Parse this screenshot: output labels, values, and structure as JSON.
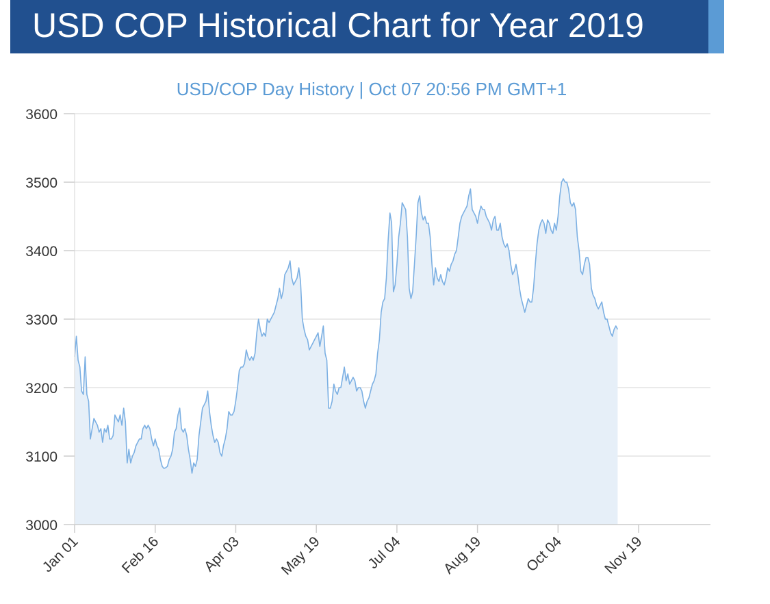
{
  "header": {
    "title": "USD COP Historical Chart for Year 2019"
  },
  "colors": {
    "header_bg": "#21508f",
    "header_accent": "#5b9bd5",
    "line": "#7cb0e3",
    "area_fill": "#e6eff8",
    "title_text": "#5b9bd5"
  },
  "chart_data": {
    "type": "area",
    "title": "USD/COP  Day History | Oct 07 20:56 PM GMT+1",
    "xlabel": "",
    "ylabel": "",
    "ylim": [
      3000,
      3600
    ],
    "yticks": [
      3000,
      3100,
      3200,
      3300,
      3400,
      3500,
      3600
    ],
    "xlim": [
      0,
      363
    ],
    "xticks": [
      {
        "label": "Jan 01",
        "day": 0
      },
      {
        "label": "Feb 16",
        "day": 46
      },
      {
        "label": "Apr 03",
        "day": 92
      },
      {
        "label": "May 19",
        "day": 138
      },
      {
        "label": "Jul 04",
        "day": 184
      },
      {
        "label": "Aug 19",
        "day": 230
      },
      {
        "label": "Oct 04",
        "day": 276
      },
      {
        "label": "Nov 19",
        "day": 322
      }
    ],
    "grid": true,
    "series": [
      {
        "points": [
          [
            0,
            3245
          ],
          [
            1,
            3275
          ],
          [
            2,
            3240
          ],
          [
            3,
            3230
          ],
          [
            4,
            3195
          ],
          [
            5,
            3190
          ],
          [
            6,
            3245
          ],
          [
            7,
            3190
          ],
          [
            8,
            3180
          ],
          [
            9,
            3125
          ],
          [
            10,
            3140
          ],
          [
            11,
            3155
          ],
          [
            12,
            3150
          ],
          [
            13,
            3145
          ],
          [
            14,
            3135
          ],
          [
            15,
            3140
          ],
          [
            16,
            3120
          ],
          [
            17,
            3140
          ],
          [
            18,
            3135
          ],
          [
            19,
            3145
          ],
          [
            20,
            3125
          ],
          [
            21,
            3125
          ],
          [
            22,
            3130
          ],
          [
            23,
            3160
          ],
          [
            24,
            3155
          ],
          [
            25,
            3150
          ],
          [
            26,
            3160
          ],
          [
            27,
            3145
          ],
          [
            28,
            3170
          ],
          [
            29,
            3150
          ],
          [
            30,
            3090
          ],
          [
            31,
            3110
          ],
          [
            32,
            3090
          ],
          [
            33,
            3100
          ],
          [
            34,
            3105
          ],
          [
            35,
            3115
          ],
          [
            36,
            3120
          ],
          [
            37,
            3125
          ],
          [
            38,
            3125
          ],
          [
            39,
            3140
          ],
          [
            40,
            3145
          ],
          [
            41,
            3140
          ],
          [
            42,
            3145
          ],
          [
            43,
            3140
          ],
          [
            44,
            3125
          ],
          [
            45,
            3115
          ],
          [
            46,
            3125
          ],
          [
            47,
            3115
          ],
          [
            48,
            3110
          ],
          [
            49,
            3095
          ],
          [
            50,
            3085
          ],
          [
            51,
            3082
          ],
          [
            52,
            3083
          ],
          [
            53,
            3085
          ],
          [
            54,
            3095
          ],
          [
            55,
            3100
          ],
          [
            56,
            3110
          ],
          [
            57,
            3135
          ],
          [
            58,
            3140
          ],
          [
            59,
            3160
          ],
          [
            60,
            3170
          ],
          [
            61,
            3140
          ],
          [
            62,
            3135
          ],
          [
            63,
            3140
          ],
          [
            64,
            3130
          ],
          [
            65,
            3110
          ],
          [
            66,
            3095
          ],
          [
            67,
            3075
          ],
          [
            68,
            3090
          ],
          [
            69,
            3085
          ],
          [
            70,
            3095
          ],
          [
            71,
            3130
          ],
          [
            72,
            3150
          ],
          [
            73,
            3170
          ],
          [
            74,
            3175
          ],
          [
            75,
            3180
          ],
          [
            76,
            3195
          ],
          [
            77,
            3165
          ],
          [
            78,
            3145
          ],
          [
            79,
            3130
          ],
          [
            80,
            3120
          ],
          [
            81,
            3125
          ],
          [
            82,
            3120
          ],
          [
            83,
            3105
          ],
          [
            84,
            3100
          ],
          [
            85,
            3115
          ],
          [
            86,
            3125
          ],
          [
            87,
            3140
          ],
          [
            88,
            3165
          ],
          [
            89,
            3160
          ],
          [
            90,
            3160
          ],
          [
            91,
            3165
          ],
          [
            92,
            3180
          ],
          [
            93,
            3200
          ],
          [
            94,
            3225
          ],
          [
            95,
            3230
          ],
          [
            96,
            3230
          ],
          [
            97,
            3235
          ],
          [
            98,
            3255
          ],
          [
            99,
            3245
          ],
          [
            100,
            3240
          ],
          [
            101,
            3245
          ],
          [
            102,
            3240
          ],
          [
            103,
            3250
          ],
          [
            104,
            3280
          ],
          [
            105,
            3300
          ],
          [
            106,
            3285
          ],
          [
            107,
            3275
          ],
          [
            108,
            3280
          ],
          [
            109,
            3275
          ],
          [
            110,
            3300
          ],
          [
            111,
            3295
          ],
          [
            112,
            3300
          ],
          [
            113,
            3305
          ],
          [
            114,
            3310
          ],
          [
            115,
            3320
          ],
          [
            116,
            3330
          ],
          [
            117,
            3345
          ],
          [
            118,
            3330
          ],
          [
            119,
            3340
          ],
          [
            120,
            3365
          ],
          [
            121,
            3370
          ],
          [
            122,
            3375
          ],
          [
            123,
            3385
          ],
          [
            124,
            3360
          ],
          [
            125,
            3350
          ],
          [
            126,
            3355
          ],
          [
            127,
            3360
          ],
          [
            128,
            3375
          ],
          [
            129,
            3355
          ],
          [
            130,
            3300
          ],
          [
            131,
            3285
          ],
          [
            132,
            3275
          ],
          [
            133,
            3270
          ],
          [
            134,
            3255
          ],
          [
            135,
            3260
          ],
          [
            136,
            3265
          ],
          [
            137,
            3270
          ],
          [
            138,
            3275
          ],
          [
            139,
            3280
          ],
          [
            140,
            3260
          ],
          [
            141,
            3275
          ],
          [
            142,
            3290
          ],
          [
            143,
            3250
          ],
          [
            144,
            3240
          ],
          [
            145,
            3170
          ],
          [
            146,
            3170
          ],
          [
            147,
            3180
          ],
          [
            148,
            3205
          ],
          [
            149,
            3195
          ],
          [
            150,
            3190
          ],
          [
            151,
            3200
          ],
          [
            152,
            3200
          ],
          [
            153,
            3215
          ],
          [
            154,
            3230
          ],
          [
            155,
            3210
          ],
          [
            156,
            3220
          ],
          [
            157,
            3205
          ],
          [
            158,
            3210
          ],
          [
            159,
            3215
          ],
          [
            160,
            3210
          ],
          [
            161,
            3195
          ],
          [
            162,
            3200
          ],
          [
            163,
            3200
          ],
          [
            164,
            3195
          ],
          [
            165,
            3180
          ],
          [
            166,
            3170
          ],
          [
            167,
            3180
          ],
          [
            168,
            3185
          ],
          [
            169,
            3195
          ],
          [
            170,
            3205
          ],
          [
            171,
            3210
          ],
          [
            172,
            3220
          ],
          [
            173,
            3250
          ],
          [
            174,
            3270
          ],
          [
            175,
            3310
          ],
          [
            176,
            3325
          ],
          [
            177,
            3330
          ],
          [
            178,
            3360
          ],
          [
            179,
            3415
          ],
          [
            180,
            3455
          ],
          [
            181,
            3440
          ],
          [
            182,
            3340
          ],
          [
            183,
            3350
          ],
          [
            184,
            3380
          ],
          [
            185,
            3420
          ],
          [
            186,
            3440
          ],
          [
            187,
            3470
          ],
          [
            188,
            3465
          ],
          [
            189,
            3460
          ],
          [
            190,
            3420
          ],
          [
            191,
            3345
          ],
          [
            192,
            3330
          ],
          [
            193,
            3340
          ],
          [
            194,
            3380
          ],
          [
            195,
            3420
          ],
          [
            196,
            3470
          ],
          [
            197,
            3480
          ],
          [
            198,
            3455
          ],
          [
            199,
            3445
          ],
          [
            200,
            3450
          ],
          [
            201,
            3440
          ],
          [
            202,
            3440
          ],
          [
            203,
            3420
          ],
          [
            204,
            3380
          ],
          [
            205,
            3350
          ],
          [
            206,
            3375
          ],
          [
            207,
            3360
          ],
          [
            208,
            3355
          ],
          [
            209,
            3365
          ],
          [
            210,
            3355
          ],
          [
            211,
            3350
          ],
          [
            212,
            3360
          ],
          [
            213,
            3375
          ],
          [
            214,
            3370
          ],
          [
            215,
            3380
          ],
          [
            216,
            3385
          ],
          [
            217,
            3395
          ],
          [
            218,
            3400
          ],
          [
            219,
            3420
          ],
          [
            220,
            3440
          ],
          [
            221,
            3450
          ],
          [
            222,
            3455
          ],
          [
            223,
            3460
          ],
          [
            224,
            3465
          ],
          [
            225,
            3480
          ],
          [
            226,
            3490
          ],
          [
            227,
            3460
          ],
          [
            228,
            3455
          ],
          [
            229,
            3450
          ],
          [
            230,
            3440
          ],
          [
            231,
            3455
          ],
          [
            232,
            3465
          ],
          [
            233,
            3460
          ],
          [
            234,
            3460
          ],
          [
            235,
            3450
          ],
          [
            236,
            3445
          ],
          [
            237,
            3440
          ],
          [
            238,
            3430
          ],
          [
            239,
            3445
          ],
          [
            240,
            3450
          ],
          [
            241,
            3430
          ],
          [
            242,
            3430
          ],
          [
            243,
            3440
          ],
          [
            244,
            3420
          ],
          [
            245,
            3410
          ],
          [
            246,
            3405
          ],
          [
            247,
            3410
          ],
          [
            248,
            3400
          ],
          [
            249,
            3380
          ],
          [
            250,
            3365
          ],
          [
            251,
            3370
          ],
          [
            252,
            3380
          ],
          [
            253,
            3365
          ],
          [
            254,
            3345
          ],
          [
            255,
            3330
          ],
          [
            256,
            3320
          ],
          [
            257,
            3310
          ],
          [
            258,
            3320
          ],
          [
            259,
            3330
          ],
          [
            260,
            3325
          ],
          [
            261,
            3325
          ],
          [
            262,
            3345
          ],
          [
            263,
            3380
          ],
          [
            264,
            3410
          ],
          [
            265,
            3430
          ],
          [
            266,
            3440
          ],
          [
            267,
            3445
          ],
          [
            268,
            3440
          ],
          [
            269,
            3425
          ],
          [
            270,
            3445
          ],
          [
            271,
            3440
          ],
          [
            272,
            3430
          ],
          [
            273,
            3425
          ],
          [
            274,
            3440
          ],
          [
            275,
            3430
          ],
          [
            276,
            3450
          ],
          [
            277,
            3480
          ],
          [
            278,
            3500
          ],
          [
            279,
            3505
          ],
          [
            280,
            3500
          ],
          [
            281,
            3500
          ],
          [
            282,
            3490
          ],
          [
            283,
            3470
          ],
          [
            284,
            3465
          ],
          [
            285,
            3470
          ],
          [
            286,
            3460
          ],
          [
            287,
            3420
          ],
          [
            288,
            3400
          ],
          [
            289,
            3370
          ],
          [
            290,
            3365
          ],
          [
            291,
            3380
          ],
          [
            292,
            3390
          ],
          [
            293,
            3390
          ],
          [
            294,
            3380
          ],
          [
            295,
            3345
          ],
          [
            296,
            3335
          ],
          [
            297,
            3330
          ],
          [
            298,
            3320
          ],
          [
            299,
            3315
          ],
          [
            300,
            3320
          ],
          [
            301,
            3325
          ],
          [
            302,
            3310
          ],
          [
            303,
            3300
          ],
          [
            304,
            3300
          ],
          [
            305,
            3290
          ],
          [
            306,
            3280
          ],
          [
            307,
            3275
          ],
          [
            308,
            3285
          ],
          [
            309,
            3290
          ],
          [
            310,
            3285
          ]
        ]
      }
    ]
  }
}
